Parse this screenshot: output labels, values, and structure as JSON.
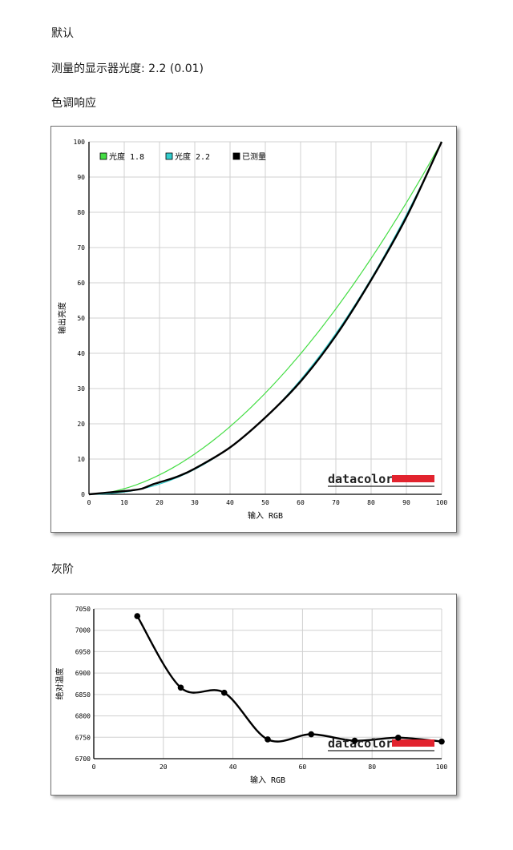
{
  "headings": {
    "mode": "默认",
    "measured_gamma": "测量的显示器光度:  2.2 (0.01)",
    "tone_response": "色调响应",
    "grayscale": "灰阶"
  },
  "chart_data": [
    {
      "type": "line",
      "xlabel": "输入 RGB",
      "ylabel": "输出亮度",
      "xlim": [
        0,
        100
      ],
      "ylim": [
        0,
        100
      ],
      "x_ticks": [
        0,
        10,
        20,
        30,
        40,
        50,
        60,
        70,
        80,
        90,
        100
      ],
      "y_ticks": [
        0,
        10,
        20,
        30,
        40,
        50,
        60,
        70,
        80,
        90,
        100
      ],
      "grid": true,
      "legend_position": "top-left",
      "series": [
        {
          "name": "光度 1.8",
          "color": "#44dd44",
          "gamma": 1.8,
          "x": [
            0,
            10,
            20,
            30,
            40,
            50,
            60,
            70,
            80,
            90,
            100
          ],
          "values": [
            0,
            1.6,
            5.5,
            11.5,
            19.2,
            28.7,
            39.9,
            52.6,
            66.9,
            82.7,
            100
          ]
        },
        {
          "name": "光度 2.2",
          "color": "#33cccc",
          "gamma": 2.2,
          "x": [
            0,
            10,
            20,
            30,
            40,
            50,
            60,
            70,
            80,
            90,
            100
          ],
          "values": [
            0,
            0.6,
            2.9,
            7.1,
            13.3,
            21.8,
            32.5,
            45.6,
            61.2,
            79.3,
            100
          ]
        },
        {
          "name": "已测量",
          "color": "#000000",
          "x": [
            0,
            10,
            12,
            15,
            18,
            20,
            25,
            30,
            40,
            50,
            60,
            70,
            80,
            90,
            100
          ],
          "values": [
            0,
            0.9,
            1.1,
            1.6,
            2.8,
            3.4,
            5.0,
            7.3,
            13.3,
            21.8,
            32.0,
            45.0,
            60.8,
            78.6,
            100
          ]
        }
      ],
      "watermark": "datacolor"
    },
    {
      "type": "line",
      "xlabel": "输入 RGB",
      "ylabel": "绝对温度",
      "xlim": [
        0,
        100
      ],
      "ylim": [
        6700,
        7050
      ],
      "x_ticks": [
        0,
        20,
        40,
        60,
        80,
        100
      ],
      "y_ticks": [
        6700,
        6750,
        6800,
        6850,
        6900,
        6950,
        7000,
        7050
      ],
      "grid": true,
      "series": [
        {
          "color": "#000000",
          "x": [
            12.5,
            25,
            37.5,
            50,
            62.5,
            75,
            87.5,
            100
          ],
          "values": [
            7033,
            6866,
            6854,
            6745,
            6757,
            6742,
            6749,
            6740
          ]
        }
      ],
      "watermark": "datacolor"
    }
  ]
}
